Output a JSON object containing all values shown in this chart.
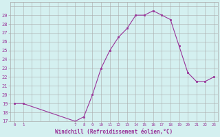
{
  "x": [
    0,
    1,
    7,
    8,
    9,
    10,
    11,
    12,
    13,
    14,
    15,
    16,
    17,
    18,
    19,
    20,
    21,
    22,
    23
  ],
  "y": [
    19,
    19,
    17,
    17.5,
    20,
    23,
    25,
    26.5,
    27.5,
    29,
    29,
    29.5,
    29,
    28.5,
    25.5,
    22.5,
    21.5,
    21.5,
    22
  ],
  "line_color": "#993399",
  "marker_color": "#993399",
  "bg_color": "#d4f0f0",
  "grid_color": "#aaaaaa",
  "xlabel": "Windchill (Refroidissement éolien,°C)",
  "xlabel_color": "#993399",
  "tick_color": "#993399",
  "ylim": [
    17,
    30
  ],
  "xlim": [
    -0.5,
    23.5
  ],
  "yticks": [
    17,
    18,
    19,
    20,
    21,
    22,
    23,
    24,
    25,
    26,
    27,
    28,
    29
  ],
  "xticks": [
    0,
    1,
    7,
    8,
    9,
    10,
    11,
    12,
    13,
    14,
    15,
    16,
    17,
    18,
    19,
    20,
    21,
    22,
    23
  ]
}
